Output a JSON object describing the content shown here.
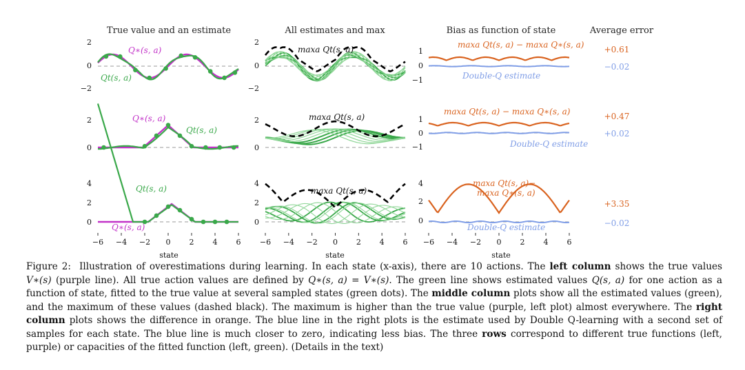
{
  "columns": [
    {
      "title": "True value and an estimate"
    },
    {
      "title": "All estimates and max"
    },
    {
      "title": "Bias as function of state"
    },
    {
      "title": "Average error"
    }
  ],
  "axes": {
    "xlabel": "state",
    "xticks": [
      "−6",
      "−4",
      "−2",
      "0",
      "2",
      "4",
      "6"
    ]
  },
  "rows": [
    {
      "yticks": [
        "2",
        "0",
        "−2"
      ],
      "bias_yticks": [
        "1",
        "0",
        "−1"
      ],
      "left_true_label": "Q∗(s, a)",
      "left_est_label": "Qt(s, a)",
      "mid_max_label": "maxa Qt(s, a)",
      "right_diff_label": "maxa Qt(s, a) − maxa Q∗(s, a)",
      "right_dq_label": "Double-Q estimate",
      "err_orange": "+0.61",
      "err_blue": "−0.02"
    },
    {
      "yticks": [
        "2",
        "0"
      ],
      "bias_yticks": [
        "1",
        "0",
        "−1"
      ],
      "left_true_label": "Q∗(s, a)",
      "left_est_label": "Qt(s, a)",
      "mid_max_label": "maxa Qt(s, a)",
      "right_diff_label": "maxa Qt(s, a) − maxa Q∗(s, a)",
      "right_dq_label": "Double-Q estimate",
      "err_orange": "+0.47",
      "err_blue": "+0.02"
    },
    {
      "yticks": [
        "4",
        "2",
        "0"
      ],
      "bias_yticks": [
        "4",
        "2",
        "0"
      ],
      "left_true_label": "Q∗(s, a)",
      "left_est_label": "Qt(s, a)",
      "mid_max_label": "maxa Qt(s, a)",
      "right_diff_label_1": "maxa Qt(s, a)−",
      "right_diff_label_2": "maxa Q∗(s, a)",
      "right_dq_label": "Double-Q estimate",
      "err_orange": "+3.35",
      "err_blue": "−0.02"
    }
  ],
  "colors": {
    "true": "#c232c8",
    "estimate": "#3aa84a",
    "estimate_light": "#8fd697",
    "max": "#000000",
    "diff": "#d9621e",
    "double_q": "#7f9de6",
    "zero": "#999999"
  },
  "caption": {
    "label": "Figure 2:",
    "s1": "Illustration of overestimations during learning. In each state (x-axis), there are 10 actions. The ",
    "b1": "left column",
    "s2": " shows the true values ",
    "m1": "V∗(s)",
    "s3": " (purple line). All true action values are defined by ",
    "m2": "Q∗(s, a) = V∗(s)",
    "s4": ". The green line shows estimated values ",
    "m3": "Q(s, a)",
    "s5": " for one action as a function of state, fitted to the true value at several sampled states (green dots). The ",
    "b2": "middle column",
    "s6": " plots show all the estimated values (green), and the maximum of these values (dashed black). The maximum is higher than the true value (purple, left plot) almost everywhere. The ",
    "b3": "right column",
    "s7": " plots shows the difference in orange. The blue line in the right plots is the estimate used by Double Q-learning with a second set of samples for each state. The blue line is much closer to zero, indicating less bias. The three ",
    "b4": "rows",
    "s8": " correspond to different true functions (left, purple) or capacities of the fitted function (left, green). (Details in the text)"
  }
}
